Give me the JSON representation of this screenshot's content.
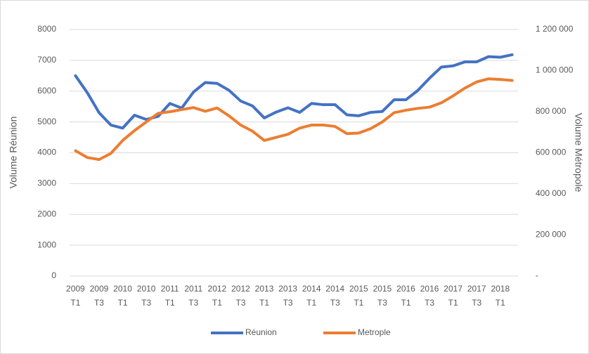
{
  "chart_data": {
    "type": "line",
    "y_label": "Volume Réunion",
    "y2_label": "Volume Métropole",
    "categories": [
      [
        "2009",
        "T1"
      ],
      null,
      [
        "2009",
        "T3"
      ],
      null,
      [
        "2010",
        "T1"
      ],
      null,
      [
        "2010",
        "T3"
      ],
      null,
      [
        "2011",
        "T1"
      ],
      null,
      [
        "2011",
        "T3"
      ],
      null,
      [
        "2012",
        "T1"
      ],
      null,
      [
        "2012",
        "T3"
      ],
      null,
      [
        "2013",
        "T1"
      ],
      null,
      [
        "2013",
        "T3"
      ],
      null,
      [
        "2014",
        "T1"
      ],
      null,
      [
        "2014",
        "T3"
      ],
      null,
      [
        "2015",
        "T1"
      ],
      null,
      [
        "2015",
        "T3"
      ],
      null,
      [
        "2016",
        "T1"
      ],
      null,
      [
        "2016",
        "T3"
      ],
      null,
      [
        "2017",
        "T1"
      ],
      null,
      [
        "2017",
        "T3"
      ],
      null,
      [
        "2018",
        "T1"
      ],
      null
    ],
    "series": [
      {
        "name": "Réunion",
        "color": "#4472c4",
        "values": [
          6500,
          5950,
          5300,
          4900,
          4800,
          5220,
          5080,
          5180,
          5600,
          5450,
          5970,
          6280,
          6250,
          6030,
          5680,
          5520,
          5130,
          5320,
          5460,
          5310,
          5600,
          5560,
          5560,
          5230,
          5200,
          5310,
          5340,
          5720,
          5720,
          6020,
          6420,
          6780,
          6820,
          6950,
          6950,
          7120,
          7100,
          7180
        ]
      },
      {
        "name": "Metrople",
        "color": "#ed7d31",
        "axis": "y2",
        "values": [
          610000,
          577000,
          567000,
          597000,
          660000,
          708000,
          750000,
          792000,
          800000,
          810000,
          820000,
          802000,
          818000,
          780000,
          735000,
          705000,
          660000,
          675000,
          690000,
          720000,
          735000,
          735000,
          728000,
          693000,
          696000,
          717000,
          750000,
          795000,
          807000,
          816000,
          822000,
          843000,
          877000,
          915000,
          945000,
          960000,
          957000,
          952000
        ]
      }
    ],
    "ylim": [
      0,
      8000
    ],
    "yticks": [
      0,
      1000,
      2000,
      3000,
      4000,
      5000,
      6000,
      7000,
      8000
    ],
    "y2lim": [
      0,
      1200000
    ],
    "y2ticks": [
      {
        "value": 0,
        "label": "-"
      },
      {
        "value": 200000,
        "label": "200 000"
      },
      {
        "value": 400000,
        "label": "400 000"
      },
      {
        "value": 600000,
        "label": "600 000"
      },
      {
        "value": 800000,
        "label": "800 000"
      },
      {
        "value": 1000000,
        "label": "1 000 000"
      },
      {
        "value": 1200000,
        "label": "1 200 000"
      }
    ],
    "grid": true,
    "legend": "bottom"
  }
}
